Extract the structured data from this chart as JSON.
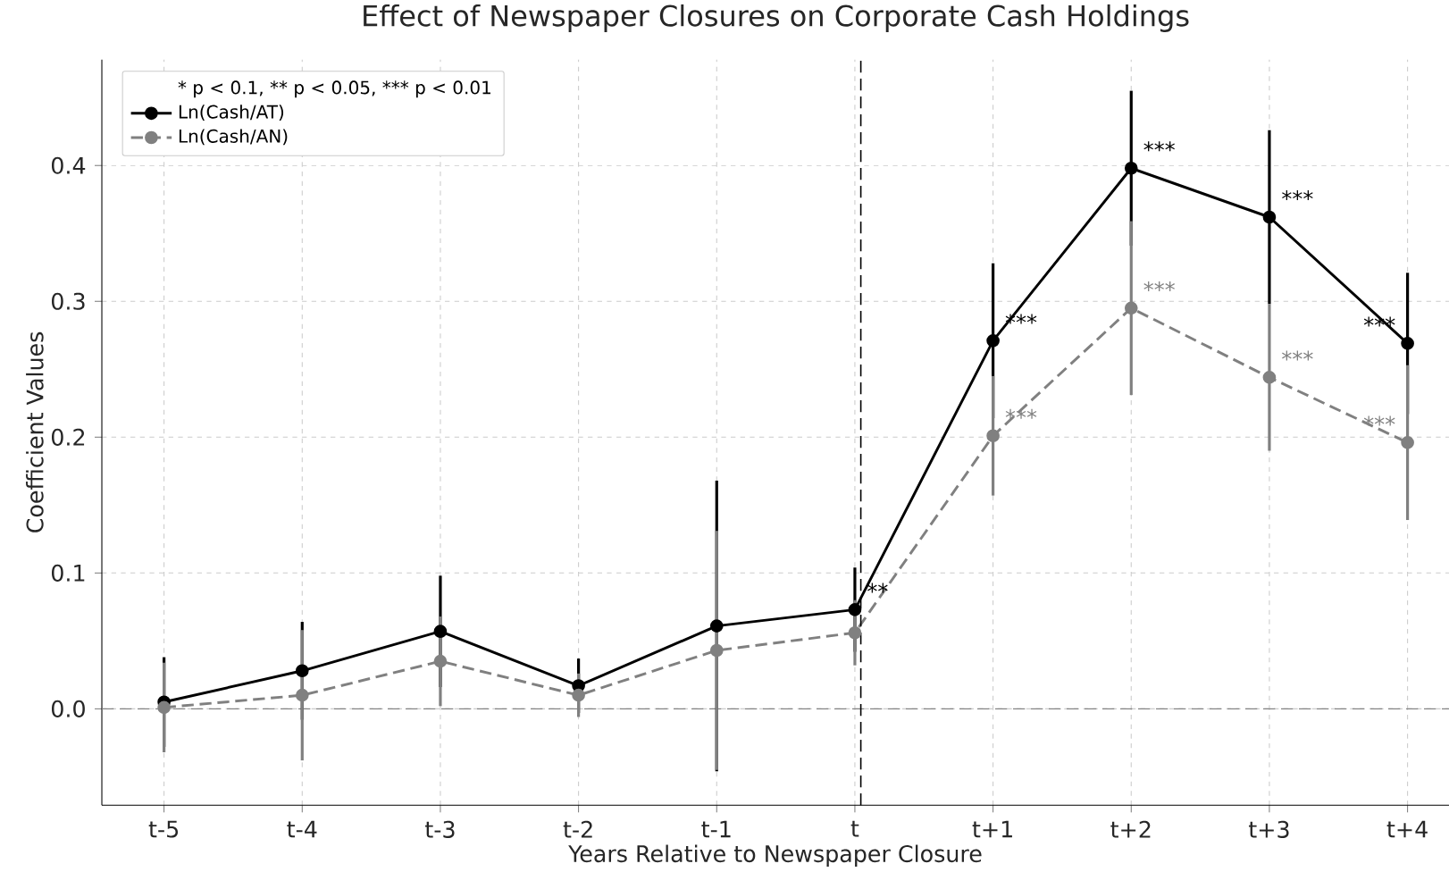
{
  "chart_data": {
    "type": "line",
    "title": "Effect of Newspaper Closures on Corporate Cash Holdings",
    "xlabel": "Years Relative to Newspaper Closure",
    "ylabel": "Coefficient Values",
    "legend_title": "* p < 0.1, ** p < 0.05, *** p < 0.01",
    "categories": [
      "t-5",
      "t-4",
      "t-3",
      "t-2",
      "t-1",
      "t",
      "t+1",
      "t+2",
      "t+3",
      "t+4"
    ],
    "series": [
      {
        "name": "Ln(Cash/AT)",
        "color": "#000000",
        "line_style": "solid",
        "values": [
          0.005,
          0.028,
          0.057,
          0.017,
          0.061,
          0.073,
          0.271,
          0.398,
          0.362,
          0.269
        ],
        "errors": [
          0.033,
          0.036,
          0.041,
          0.02,
          0.107,
          0.031,
          0.057,
          0.057,
          0.064,
          0.052
        ],
        "value_labels": [
          null,
          null,
          null,
          null,
          null,
          "**",
          "***",
          "***",
          "***",
          "***"
        ]
      },
      {
        "name": "Ln(Cash/AN)",
        "color": "#808080",
        "line_style": "dashed",
        "values": [
          0.001,
          0.01,
          0.035,
          0.01,
          0.043,
          0.056,
          0.201,
          0.295,
          0.244,
          0.196
        ],
        "errors": [
          0.033,
          0.048,
          0.033,
          0.016,
          0.088,
          0.024,
          0.044,
          0.064,
          0.054,
          0.057
        ],
        "value_labels": [
          null,
          null,
          null,
          null,
          null,
          null,
          "***",
          "***",
          "***",
          "***"
        ]
      }
    ],
    "ylim": [
      -0.071,
      0.478
    ],
    "yticks": [
      {
        "value": 0,
        "label": "0.0"
      },
      {
        "value": 0.1,
        "label": "0.1"
      },
      {
        "value": 0.2,
        "label": "0.2"
      },
      {
        "value": 0.3,
        "label": "0.3"
      },
      {
        "value": 0.4,
        "label": "0.4"
      }
    ],
    "ref_lines": [
      {
        "axis": "x",
        "value": "t",
        "color": "#000000",
        "line_style": "dashed"
      },
      {
        "axis": "y",
        "value": 0,
        "color": "#808080",
        "line_style": "dashed"
      }
    ],
    "grid": true,
    "legend": "top left",
    "marker": "circle"
  }
}
